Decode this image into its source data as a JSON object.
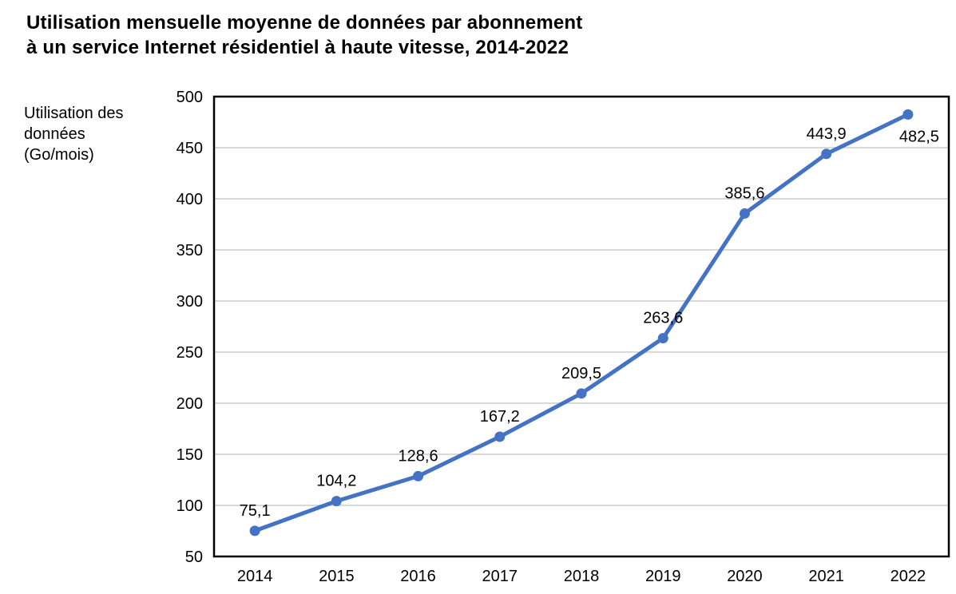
{
  "page": {
    "title": "Utilisation mensuelle moyenne de données par abonnement\nà un service Internet résidentiel à haute vitesse, 2014-2022"
  },
  "chart_data": {
    "type": "line",
    "title": "Utilisation mensuelle moyenne de données par abonnement à un service Internet résidentiel à haute vitesse, 2014-2022",
    "ylabel": "Utilisation des\ndonnées\n(Go/mois)",
    "xlabel": "",
    "categories": [
      "2014",
      "2015",
      "2016",
      "2017",
      "2018",
      "2019",
      "2020",
      "2021",
      "2022"
    ],
    "series": [
      {
        "name": "Utilisation des données (Go/mois)",
        "values": [
          75.1,
          104.2,
          128.6,
          167.2,
          209.5,
          263.6,
          385.6,
          443.9,
          482.5
        ]
      }
    ],
    "data_labels": [
      "75,1",
      "104,2",
      "128,6",
      "167,2",
      "209,5",
      "263,6",
      "385,6",
      "443,9",
      "482,5"
    ],
    "decimal_separator": ",",
    "ylim": [
      50,
      500
    ],
    "ytick_step": 50,
    "ytick_labels": [
      "50",
      "100",
      "150",
      "200",
      "250",
      "300",
      "350",
      "400",
      "450",
      "500"
    ],
    "grid": "horizontal-only",
    "legend": "none",
    "marker": "circle",
    "colors": {
      "line": "#4472C4",
      "marker": "#4472C4",
      "gridline": "#D9D9D9",
      "axis_border": "#000000",
      "text": "#000000",
      "background": "#FFFFFF"
    }
  }
}
